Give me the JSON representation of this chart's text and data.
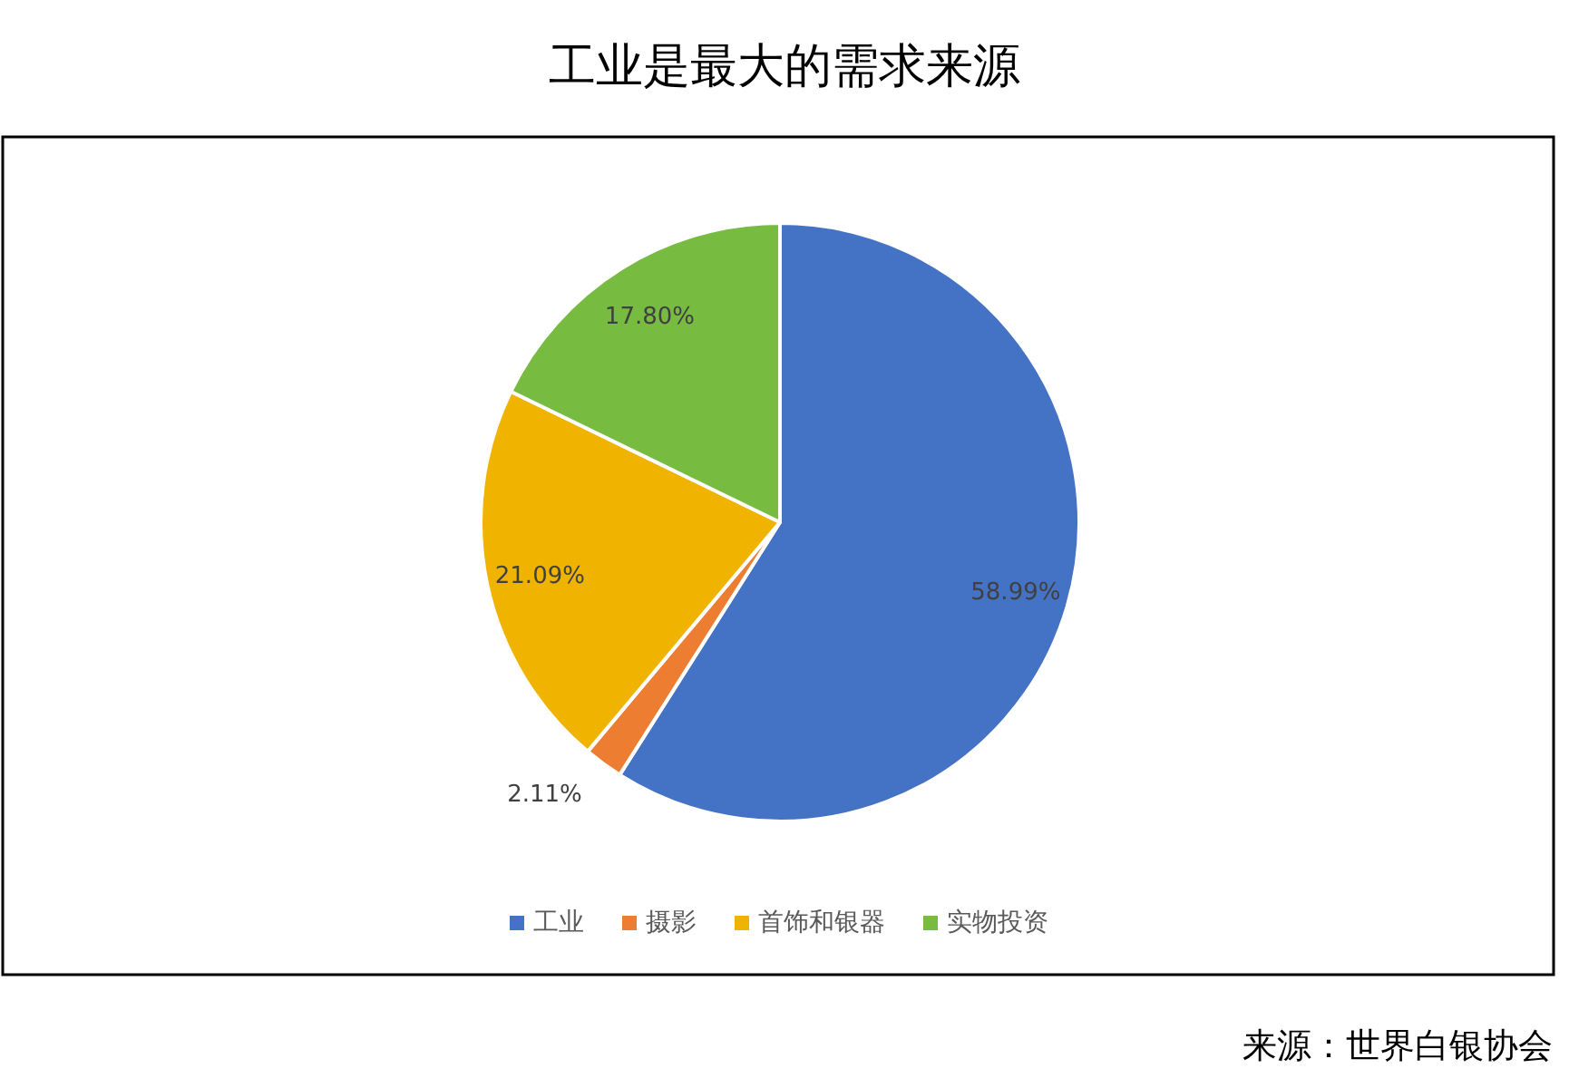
{
  "chart_data": {
    "type": "pie",
    "title": "工业是最大的需求来源",
    "categories": [
      "工业",
      "摄影",
      "首饰和银器",
      "实物投资"
    ],
    "values": [
      58.99,
      2.11,
      21.09,
      17.8
    ],
    "colors": [
      "#4472c4",
      "#ed7d31",
      "#f0b400",
      "#77bb41"
    ],
    "value_labels": [
      "58.99%",
      "2.11%",
      "21.09%",
      "17.80%"
    ],
    "legend": "bottom",
    "annotations": [
      "来源：世界白银协会"
    ]
  }
}
